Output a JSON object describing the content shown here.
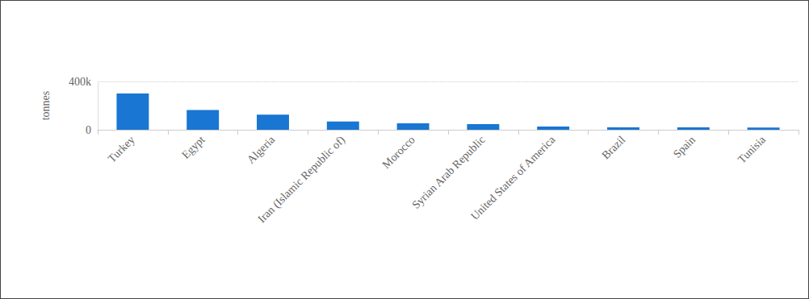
{
  "chart_data": {
    "type": "bar",
    "y_label": "tonnes",
    "categories": [
      "Turkey",
      "Egypt",
      "Algeria",
      "Iran (Islamic Republic of)",
      "Morocco",
      "Syrian Arab Republic",
      "United States of America",
      "Brazil",
      "Spain",
      "Tunisia"
    ],
    "values": [
      300000,
      163000,
      125000,
      68000,
      54000,
      47000,
      27000,
      20000,
      20000,
      19000
    ],
    "color": "#1976d2",
    "ylim": [
      0,
      400000
    ],
    "yticks": [
      0,
      {
        "value": 400000,
        "label": "400k"
      }
    ],
    "grid": true
  }
}
